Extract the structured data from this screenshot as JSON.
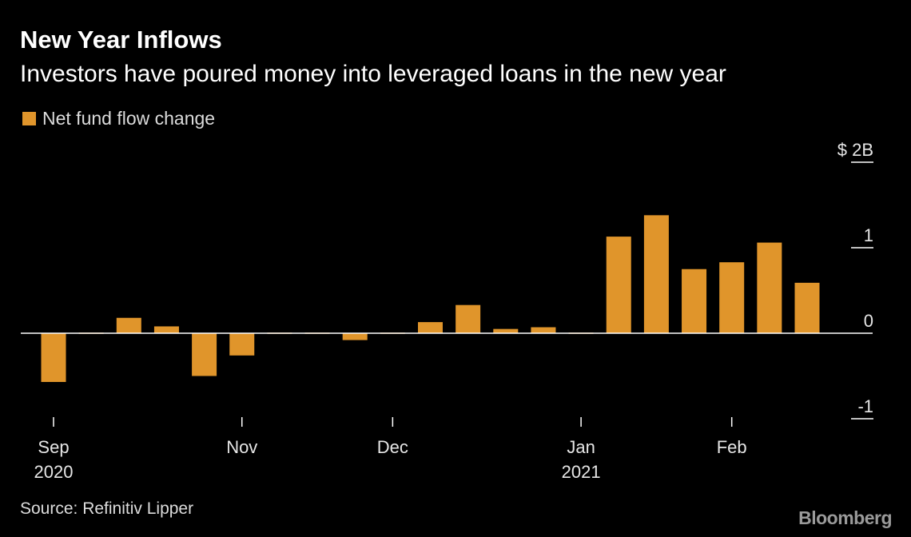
{
  "title": "New Year Inflows",
  "subtitle": "Investors have poured money into leveraged loans in the new year",
  "source": "Source: Refinitiv Lipper",
  "brand": "Bloomberg",
  "colors": {
    "background": "#000000",
    "bar": "#e0952b",
    "axis": "#ffffff",
    "text": "#ffffff"
  },
  "chart_data": {
    "type": "bar",
    "title": "New Year Inflows",
    "subtitle": "Investors have poured money into leveraged loans in the new year",
    "series": [
      {
        "name": "Net fund flow change",
        "values": [
          -0.57,
          -0.01,
          0.18,
          0.08,
          -0.5,
          -0.26,
          -0.01,
          -0.01,
          -0.08,
          -0.01,
          0.13,
          0.33,
          0.05,
          0.07,
          -0.01,
          1.13,
          1.38,
          0.75,
          0.83,
          1.06,
          0.59
        ]
      }
    ],
    "ylim": [
      -1,
      2
    ],
    "yticks": [
      {
        "value": 2,
        "label": "$ 2B"
      },
      {
        "value": 1,
        "label": "1"
      },
      {
        "value": 0,
        "label": "0"
      },
      {
        "value": -1,
        "label": "-1"
      }
    ],
    "xticks": [
      {
        "bar_index": 0,
        "label": "Sep",
        "sublabel": "2020"
      },
      {
        "bar_index": 5,
        "label": "Nov",
        "sublabel": ""
      },
      {
        "bar_index": 9,
        "label": "Dec",
        "sublabel": ""
      },
      {
        "bar_index": 14,
        "label": "Jan",
        "sublabel": "2021"
      },
      {
        "bar_index": 18,
        "label": "Feb",
        "sublabel": ""
      }
    ],
    "legend": "top-left",
    "grid": false
  }
}
